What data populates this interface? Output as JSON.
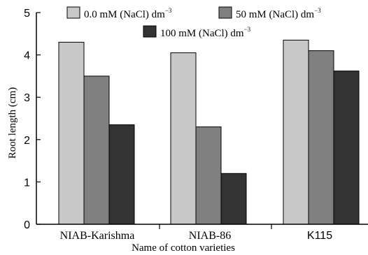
{
  "chart_data": {
    "type": "bar",
    "categories": [
      "NIAB-Karishma",
      "NIAB-86",
      "K115"
    ],
    "series": [
      {
        "name": "0.0 mM (NaCl) dm",
        "values": [
          4.3,
          4.05,
          4.35
        ],
        "color": "#c8c8c8"
      },
      {
        "name": "50 mM (NaCl) dm",
        "values": [
          3.5,
          2.3,
          4.1
        ],
        "color": "#808080"
      },
      {
        "name": "100 mM (NaCl) dm",
        "values": [
          2.35,
          1.2,
          3.62
        ],
        "color": "#333333"
      }
    ],
    "legend_superscript": "−3",
    "xlabel": "Name of cotton varieties",
    "ylabel": "Root length (cm)",
    "ylim": [
      0,
      5
    ],
    "yticks": [
      "0",
      "1",
      "2",
      "3",
      "4",
      "5"
    ],
    "grid": false,
    "legend_position": "top"
  }
}
